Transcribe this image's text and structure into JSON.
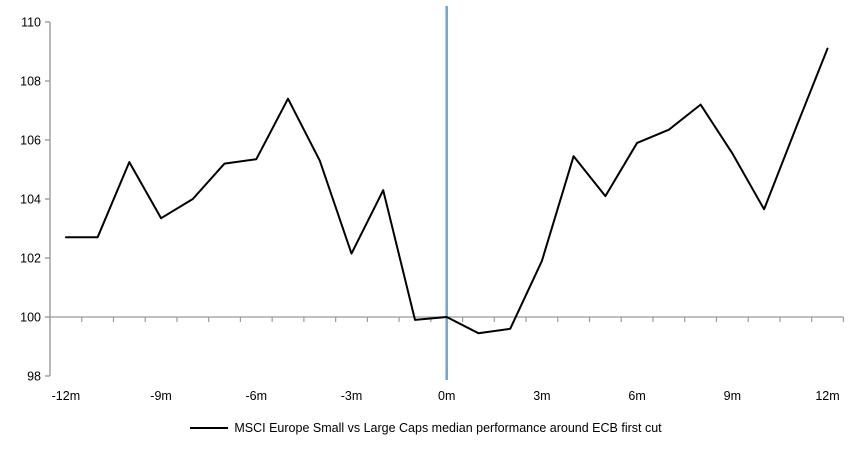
{
  "chart_data": {
    "type": "line",
    "title": "",
    "xlabel": "",
    "ylabel": "",
    "x": [
      -12,
      -11,
      -10,
      -9,
      -8,
      -7,
      -6,
      -5,
      -4,
      -3,
      -2,
      -1,
      0,
      1,
      2,
      3,
      4,
      5,
      6,
      7,
      8,
      9,
      10,
      11,
      12
    ],
    "series": [
      {
        "name": "MSCI Europe Small vs Large Caps median performance around ECB first cut",
        "values": [
          102.7,
          102.7,
          105.25,
          103.35,
          104.0,
          105.2,
          105.35,
          107.4,
          105.3,
          102.15,
          104.3,
          99.9,
          100.0,
          99.45,
          99.6,
          101.9,
          105.45,
          104.1,
          105.9,
          106.35,
          107.2,
          105.55,
          103.65,
          106.4,
          109.1
        ]
      }
    ],
    "ylim": [
      98,
      110
    ],
    "xlim_categories": [
      -12.5,
      12.5
    ],
    "y_ticks": [
      98,
      100,
      102,
      104,
      106,
      108,
      110
    ],
    "y_tick_labels": [
      "98",
      "100",
      "102",
      "104",
      "106",
      "108",
      "110"
    ],
    "x_tick_months": [
      -12,
      -9,
      -6,
      -3,
      0,
      3,
      6,
      9,
      12
    ],
    "x_tick_labels": [
      "-12m",
      "-9m",
      "-6m",
      "-3m",
      "0m",
      "3m",
      "6m",
      "9m",
      "12m"
    ],
    "x_minor_tick_interval_months": 1,
    "axis_crosses_at_y": 100,
    "event_line_at_x": 0,
    "grid": "off",
    "legend_position": "bottom-center",
    "colors": {
      "series_line": "#000000",
      "event_line": "#74a3ce",
      "axis_line": "#9b9b9b",
      "background": "#ffffff",
      "text": "#000000"
    }
  },
  "legend": {
    "label": "MSCI Europe Small vs Large Caps median performance around ECB first cut"
  }
}
